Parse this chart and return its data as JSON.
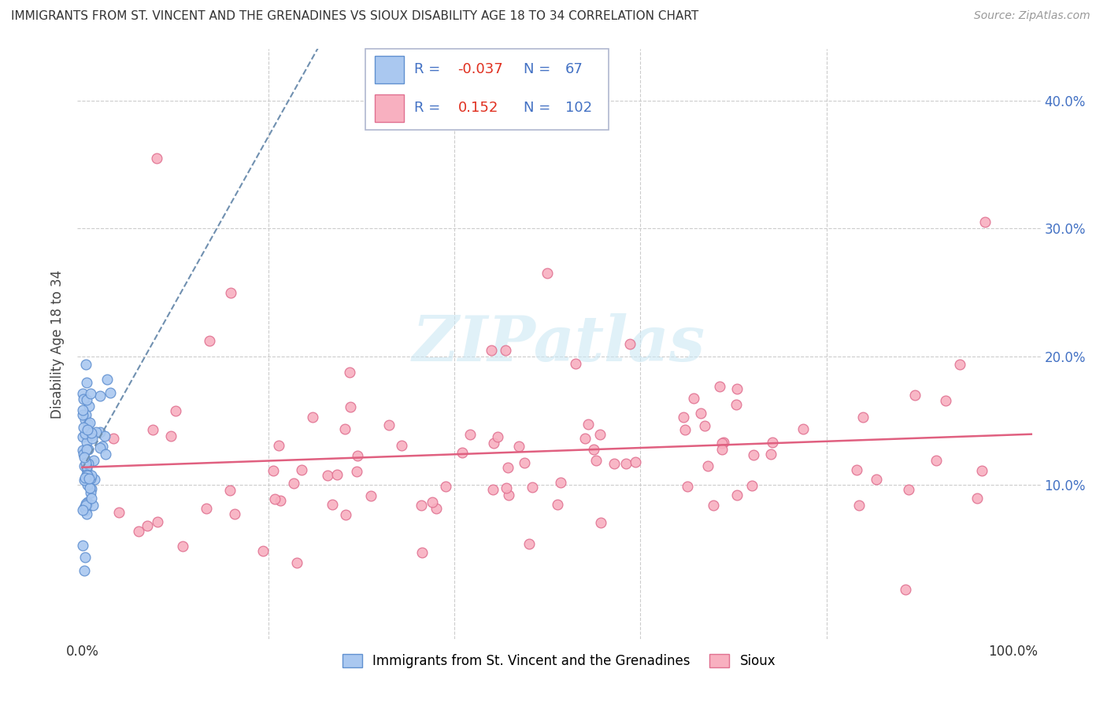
{
  "title": "IMMIGRANTS FROM ST. VINCENT AND THE GRENADINES VS SIOUX DISABILITY AGE 18 TO 34 CORRELATION CHART",
  "source": "Source: ZipAtlas.com",
  "ylabel": "Disability Age 18 to 34",
  "watermark": "ZIPatlas",
  "legend1_label": "Immigrants from St. Vincent and the Grenadines",
  "legend2_label": "Sioux",
  "R1": -0.037,
  "N1": 67,
  "R2": 0.152,
  "N2": 102,
  "color1_face": "#aac8f0",
  "color1_edge": "#6090d0",
  "color2_face": "#f8b0c0",
  "color2_edge": "#e07090",
  "trend1_color": "#7090b0",
  "trend2_color": "#e06080",
  "grid_color": "#cccccc",
  "tick_color": "#4472c4",
  "title_color": "#333333",
  "source_color": "#999999",
  "xtick_positions": [
    0.0,
    0.2,
    0.4,
    0.6,
    0.8,
    1.0
  ],
  "xtick_labels": [
    "0.0%",
    "",
    "",
    "",
    "",
    "100.0%"
  ],
  "ytick_positions": [
    0.0,
    0.1,
    0.2,
    0.3,
    0.4
  ],
  "ytick_labels_right": [
    "",
    "10.0%",
    "20.0%",
    "30.0%",
    "40.0%"
  ],
  "xlim": [
    -0.005,
    1.03
  ],
  "ylim": [
    -0.02,
    0.44
  ]
}
